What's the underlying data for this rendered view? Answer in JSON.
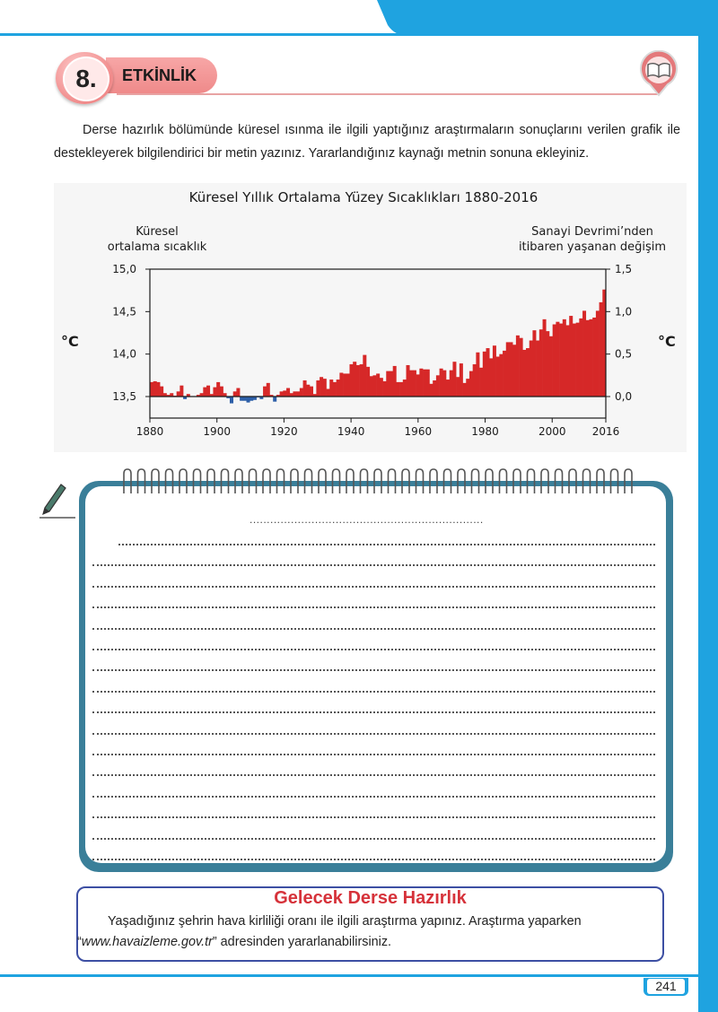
{
  "header": {
    "activity_number": "8.",
    "activity_label": "ETKİNLİK",
    "icon": "book-pin-icon"
  },
  "intro": {
    "text": "Derse hazırlık bölümünde küresel ısınma ile ilgili yaptığınız araştırmaların sonuçlarını verilen grafik ile destekleyerek bilgilendirici bir metin yazınız. Yararlandığınız kaynağı metnin sonuna ekleyiniz."
  },
  "chart_data": {
    "type": "bar",
    "title": "Küresel Yıllık Ortalama Yüzey Sıcaklıkları 1880-2016",
    "left_axis_title": [
      "Küresel",
      "ortalama sıcaklık"
    ],
    "right_axis_title": [
      "Sanayi Devrimi’nden",
      "itibaren yaşanan değişim"
    ],
    "left_unit": "°C",
    "right_unit": "°C",
    "left_ticks": [
      "15,0",
      "14,5",
      "14,0",
      "13,5"
    ],
    "right_ticks": [
      "1,5",
      "1,0",
      "0,5",
      "0,0"
    ],
    "x_ticks": [
      "1880",
      "1900",
      "1920",
      "1940",
      "1960",
      "1980",
      "2000",
      "2016"
    ],
    "xlim": [
      1880,
      2016
    ],
    "ylim_left": [
      13.5,
      15.0
    ],
    "ylim_right": [
      0.0,
      1.5
    ],
    "baseline_change": 0.0,
    "years_start": 1880,
    "anomaly_values": [
      0.17,
      0.18,
      0.17,
      0.12,
      0.04,
      0.02,
      0.04,
      0.01,
      0.06,
      0.13,
      -0.03,
      0.03,
      0.0,
      0.0,
      0.02,
      0.04,
      0.11,
      0.13,
      0.03,
      0.11,
      0.17,
      0.12,
      0.04,
      -0.02,
      -0.08,
      0.06,
      0.1,
      -0.05,
      -0.05,
      -0.07,
      -0.05,
      -0.04,
      -0.01,
      -0.03,
      0.12,
      0.16,
      0.02,
      -0.06,
      0.02,
      0.06,
      0.07,
      0.1,
      0.04,
      0.06,
      0.06,
      0.1,
      0.19,
      0.14,
      0.12,
      0.03,
      0.19,
      0.23,
      0.21,
      0.09,
      0.2,
      0.17,
      0.2,
      0.28,
      0.27,
      0.27,
      0.38,
      0.41,
      0.37,
      0.38,
      0.49,
      0.35,
      0.24,
      0.25,
      0.27,
      0.22,
      0.18,
      0.3,
      0.3,
      0.36,
      0.17,
      0.17,
      0.2,
      0.37,
      0.31,
      0.31,
      0.26,
      0.33,
      0.32,
      0.32,
      0.15,
      0.19,
      0.25,
      0.33,
      0.31,
      0.2,
      0.31,
      0.41,
      0.23,
      0.39,
      0.16,
      0.21,
      0.3,
      0.38,
      0.52,
      0.34,
      0.53,
      0.57,
      0.45,
      0.6,
      0.47,
      0.5,
      0.54,
      0.64,
      0.64,
      0.61,
      0.72,
      0.69,
      0.55,
      0.57,
      0.66,
      0.78,
      0.66,
      0.79,
      0.91,
      0.77,
      0.71,
      0.85,
      0.88,
      0.86,
      0.91,
      0.84,
      0.95,
      0.86,
      0.87,
      0.92,
      1.01,
      0.9,
      0.91,
      0.93,
      1.01,
      1.11,
      1.26
    ]
  },
  "writing_area": {
    "title_line": "....................................................................",
    "line_count": 16
  },
  "prep": {
    "title": "Gelecek Derse Hazırlık",
    "text_before": "Yaşadığınız şehrin hava kirliliği oranı ile ilgili araştırma yapınız. Araştırma yaparken “",
    "link": "www.havaizleme.gov.tr",
    "text_after": "” adresinden yararlanabilirsiniz."
  },
  "page_number": "241",
  "colors": {
    "accent_blue": "#1fa3e0",
    "header_pink": "#ef8a8a",
    "bar_red": "#d62828",
    "bar_blue": "#2d5fa8",
    "notebook_frame": "#3a7f99",
    "prep_title": "#d6323a"
  }
}
